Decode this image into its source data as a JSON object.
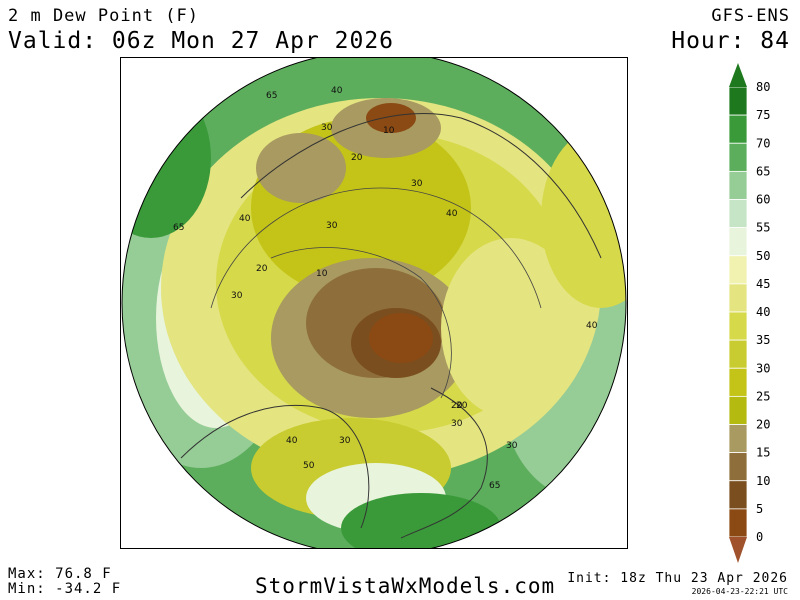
{
  "header": {
    "title": "2 m Dew Point (F)",
    "valid": "Valid: 06z Mon 27 Apr 2026",
    "model": "GFS-ENS",
    "hour": "Hour: 84"
  },
  "footer": {
    "max": "Max: 76.8 F",
    "min": "Min: -34.2 F",
    "site": "StormVistaWxModels.com",
    "init": "Init: 18z Thu 23 Apr 2026",
    "timestamp": "2026-04-23-22:21 UTC"
  },
  "legend": {
    "levels": [
      "0",
      "5",
      "10",
      "15",
      "20",
      "25",
      "30",
      "35",
      "40",
      "45",
      "50",
      "55",
      "60",
      "65",
      "70",
      "75",
      "80"
    ],
    "colors": [
      "#a0522d",
      "#8b4a14",
      "#7a4e1e",
      "#8e6e3a",
      "#a89a60",
      "#b4ba10",
      "#c4c418",
      "#c8cc30",
      "#d6d94a",
      "#e4e480",
      "#f1f1b0",
      "#e8f4dc",
      "#c6e4c6",
      "#96cc96",
      "#5cae5c",
      "#3a9a3a",
      "#1e781e"
    ]
  },
  "map": {
    "contour_labels": [
      "65",
      "40",
      "30",
      "20",
      "10",
      "30",
      "40",
      "20",
      "30",
      "10",
      "40",
      "65",
      "30",
      "20",
      "40",
      "30",
      "65",
      "40",
      "50",
      "30",
      "20",
      "30"
    ]
  },
  "colors": {
    "ocean_green": "#5cae5c",
    "dry_brown": "#7a4e1e",
    "arctic_yellow": "#e4e480"
  }
}
